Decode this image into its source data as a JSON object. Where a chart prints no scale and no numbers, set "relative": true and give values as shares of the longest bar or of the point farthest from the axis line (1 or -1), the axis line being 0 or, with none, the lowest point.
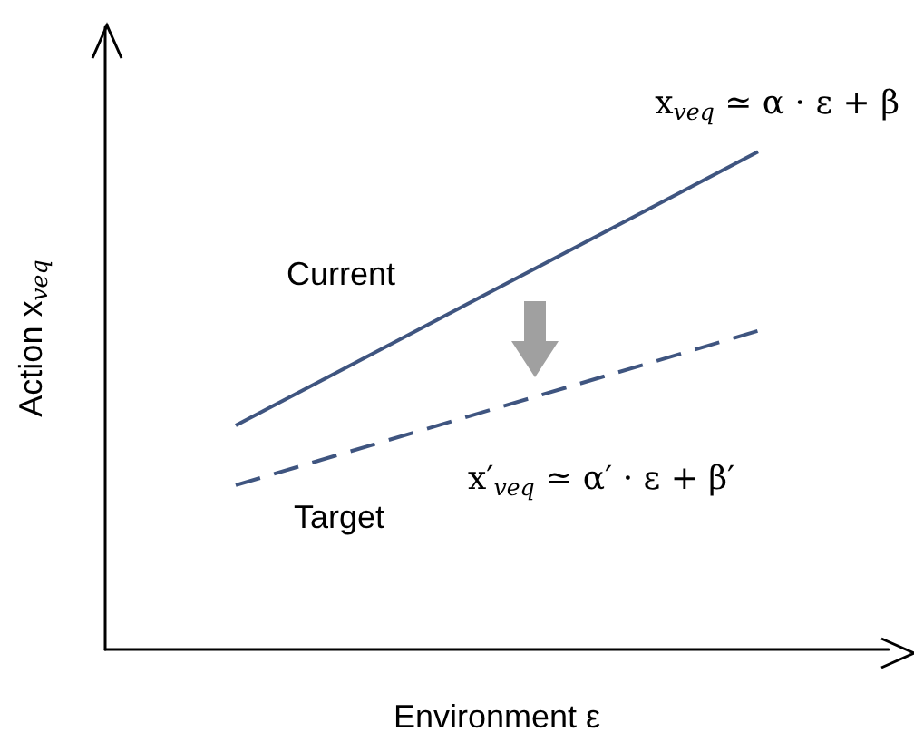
{
  "chart_data": {
    "type": "line",
    "relative": true,
    "xlabel": "Environment ε",
    "ylabel": "Action x$_{veq}$",
    "categories": [
      null,
      null,
      null
    ],
    "series": [
      {
        "name": "Current",
        "color": "#3f5580",
        "line_style": "solid",
        "values": [
          0.45,
          null,
          1
        ]
      },
      {
        "name": "Target",
        "color": "#3f5580",
        "line_style": "dashed",
        "values": [
          0.33,
          null,
          0.64
        ]
      }
    ],
    "annotations": [
      "x$_{veq}$ ≃ α · ε + β",
      "x′$_{veq}$ ≃ α′ · ε + β′"
    ],
    "marker": "none",
    "legend": false,
    "grid": false
  }
}
